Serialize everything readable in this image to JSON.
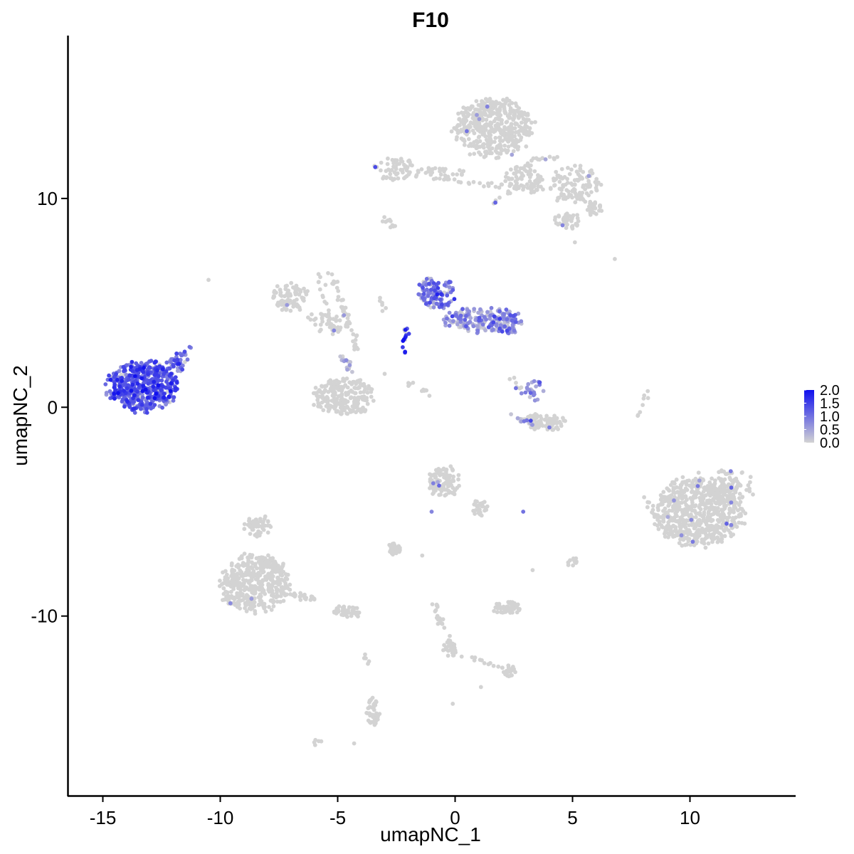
{
  "chart_data": {
    "type": "scatter",
    "title": "F10",
    "xlabel": "umapNC_1",
    "ylabel": "umapNC_2",
    "xlim": [
      -16.5,
      14.5
    ],
    "ylim": [
      -18.6,
      17.8
    ],
    "x_ticks": [
      -15,
      -10,
      -5,
      0,
      5,
      10
    ],
    "x_tick_labels": [
      "-15",
      "-10",
      "-5",
      "0",
      "5",
      "10"
    ],
    "y_ticks": [
      10,
      0,
      -10
    ],
    "y_tick_labels": [
      "10",
      "0",
      "-10"
    ],
    "grid": false,
    "color_scale": {
      "low_color": "#d3d3d3",
      "high_color": "#1010ee",
      "min": 0.0,
      "max": 2.0,
      "labels": [
        "2.0",
        "1.5",
        "1.0",
        "0.5",
        "0.0"
      ],
      "legend_position": "right"
    },
    "clusters": [
      {
        "cx": -13.3,
        "cy": 1.0,
        "rx": 1.5,
        "ry": 1.2,
        "n": 520,
        "expr": 1.2
      },
      {
        "cx": -11.8,
        "cy": 2.2,
        "rx": 0.5,
        "ry": 0.5,
        "n": 30,
        "expr": 1.0
      },
      {
        "cx": 1.6,
        "cy": 13.4,
        "rx": 1.7,
        "ry": 1.4,
        "n": 420,
        "expr": 0.0
      },
      {
        "cx": 2.9,
        "cy": 10.9,
        "rx": 0.8,
        "ry": 0.8,
        "n": 70,
        "expr": 0.0
      },
      {
        "cx": 5.1,
        "cy": 10.7,
        "rx": 1.1,
        "ry": 1.0,
        "n": 110,
        "expr": 0.0
      },
      {
        "cx": 5.9,
        "cy": 9.5,
        "rx": 0.4,
        "ry": 0.3,
        "n": 25,
        "expr": 0.0
      },
      {
        "cx": 4.8,
        "cy": 8.9,
        "rx": 0.6,
        "ry": 0.4,
        "n": 40,
        "expr": 0.0
      },
      {
        "cx": -2.6,
        "cy": 11.4,
        "rx": 0.8,
        "ry": 0.6,
        "n": 60,
        "expr": 0.0
      },
      {
        "cx": -0.6,
        "cy": 11.2,
        "rx": 1.2,
        "ry": 0.3,
        "n": 35,
        "expr": 0.0
      },
      {
        "cx": -7.0,
        "cy": 5.3,
        "rx": 0.8,
        "ry": 0.7,
        "n": 80,
        "expr": 0.0
      },
      {
        "cx": -5.3,
        "cy": 4.1,
        "rx": 1.0,
        "ry": 0.5,
        "n": 50,
        "expr": 0.0
      },
      {
        "cx": -4.8,
        "cy": 0.5,
        "rx": 1.3,
        "ry": 0.9,
        "n": 220,
        "expr": 0.0
      },
      {
        "cx": -0.8,
        "cy": 5.5,
        "rx": 0.8,
        "ry": 0.8,
        "n": 110,
        "expr": 0.9
      },
      {
        "cx": 1.1,
        "cy": 4.2,
        "rx": 1.6,
        "ry": 0.6,
        "n": 170,
        "expr": 0.5
      },
      {
        "cx": 2.2,
        "cy": 4.1,
        "rx": 0.6,
        "ry": 0.6,
        "n": 60,
        "expr": 0.7
      },
      {
        "cx": 3.8,
        "cy": -0.7,
        "rx": 1.0,
        "ry": 0.4,
        "n": 80,
        "expr": 0.0
      },
      {
        "cx": 3.4,
        "cy": 0.8,
        "rx": 0.4,
        "ry": 0.5,
        "n": 25,
        "expr": 0.6
      },
      {
        "cx": 10.4,
        "cy": -5.0,
        "rx": 1.9,
        "ry": 1.7,
        "n": 650,
        "expr": 0.0
      },
      {
        "cx": 11.8,
        "cy": -3.8,
        "rx": 0.9,
        "ry": 0.9,
        "n": 80,
        "expr": 0.0
      },
      {
        "cx": -0.5,
        "cy": -3.6,
        "rx": 0.7,
        "ry": 0.8,
        "n": 110,
        "expr": 0.0
      },
      {
        "cx": 1.0,
        "cy": -4.8,
        "rx": 0.4,
        "ry": 0.4,
        "n": 20,
        "expr": 0.0
      },
      {
        "cx": -8.5,
        "cy": -8.4,
        "rx": 1.5,
        "ry": 1.4,
        "n": 420,
        "expr": 0.0
      },
      {
        "cx": -8.4,
        "cy": -5.7,
        "rx": 0.6,
        "ry": 0.5,
        "n": 60,
        "expr": 0.0
      },
      {
        "cx": -4.6,
        "cy": -9.8,
        "rx": 0.6,
        "ry": 0.3,
        "n": 50,
        "expr": 0.0
      },
      {
        "cx": 2.2,
        "cy": -9.6,
        "rx": 0.6,
        "ry": 0.3,
        "n": 60,
        "expr": 0.0
      },
      {
        "cx": -2.6,
        "cy": -6.8,
        "rx": 0.3,
        "ry": 0.3,
        "n": 25,
        "expr": 0.0
      },
      {
        "cx": 5.0,
        "cy": -7.4,
        "rx": 0.2,
        "ry": 0.3,
        "n": 12,
        "expr": 0.0
      },
      {
        "cx": 2.4,
        "cy": -12.7,
        "rx": 0.3,
        "ry": 0.2,
        "n": 15,
        "expr": 0.0
      },
      {
        "cx": -3.5,
        "cy": -14.6,
        "rx": 0.3,
        "ry": 0.7,
        "n": 40,
        "expr": 0.0
      },
      {
        "cx": -0.2,
        "cy": -11.5,
        "rx": 0.3,
        "ry": 0.4,
        "n": 25,
        "expr": 0.0
      }
    ],
    "strands": [
      {
        "x1": -12.4,
        "y1": 1.6,
        "x2": -11.3,
        "y2": 2.8,
        "n": 18,
        "expr": 1.1
      },
      {
        "x1": -5.9,
        "y1": 6.6,
        "x2": -5.1,
        "y2": 3.2,
        "n": 22,
        "expr": 0.0
      },
      {
        "x1": -5.4,
        "y1": 6.7,
        "x2": -4.5,
        "y2": 4.0,
        "n": 22,
        "expr": 0.0
      },
      {
        "x1": -4.4,
        "y1": 4.0,
        "x2": -4.2,
        "y2": 2.7,
        "n": 12,
        "expr": 0.0
      },
      {
        "x1": -4.9,
        "y1": 2.6,
        "x2": -4.3,
        "y2": 1.5,
        "n": 14,
        "expr": 0.3
      },
      {
        "x1": -3.2,
        "y1": 5.2,
        "x2": -3.0,
        "y2": 4.5,
        "n": 6,
        "expr": 0.0
      },
      {
        "x1": -2.1,
        "y1": 3.8,
        "x2": -2.2,
        "y2": 2.5,
        "n": 14,
        "expr": 1.8
      },
      {
        "x1": -1.9,
        "y1": 1.2,
        "x2": -1.0,
        "y2": 0.6,
        "n": 10,
        "expr": 0.0
      },
      {
        "x1": -0.9,
        "y1": 11.0,
        "x2": 4.2,
        "y2": 10.3,
        "n": 25,
        "expr": 0.0
      },
      {
        "x1": 1.0,
        "y1": 14.9,
        "x2": 2.5,
        "y2": 12.4,
        "n": 20,
        "expr": 0.0
      },
      {
        "x1": 3.1,
        "y1": 11.8,
        "x2": 4.3,
        "y2": 12.0,
        "n": 12,
        "expr": 0.0
      },
      {
        "x1": 1.6,
        "y1": 9.8,
        "x2": 3.2,
        "y2": 10.8,
        "n": 14,
        "expr": 0.0
      },
      {
        "x1": -3.1,
        "y1": 9.0,
        "x2": -2.6,
        "y2": 8.9,
        "n": 6,
        "expr": 0.0
      },
      {
        "x1": 2.2,
        "y1": -0.2,
        "x2": 3.4,
        "y2": -0.9,
        "n": 12,
        "expr": 0.3
      },
      {
        "x1": 2.4,
        "y1": 1.5,
        "x2": 3.0,
        "y2": 0.5,
        "n": 8,
        "expr": 0.0
      },
      {
        "x1": 7.8,
        "y1": -0.4,
        "x2": 8.2,
        "y2": 0.9,
        "n": 8,
        "expr": 0.0
      },
      {
        "x1": 9.0,
        "y1": -6.0,
        "x2": 8.1,
        "y2": -4.3,
        "n": 14,
        "expr": 0.0
      },
      {
        "x1": 1.3,
        "y1": -5.5,
        "x2": 0.8,
        "y2": -4.6,
        "n": 8,
        "expr": 0.0
      },
      {
        "x1": -7.5,
        "y1": -8.8,
        "x2": -5.8,
        "y2": -9.2,
        "n": 28,
        "expr": 0.0
      },
      {
        "x1": -9.9,
        "y1": -9.2,
        "x2": -9.1,
        "y2": -9.6,
        "n": 12,
        "expr": 0.0
      },
      {
        "x1": -1.0,
        "y1": -8.9,
        "x2": 0.0,
        "y2": -12.0,
        "n": 24,
        "expr": 0.0
      },
      {
        "x1": 0.2,
        "y1": -11.9,
        "x2": 2.5,
        "y2": -12.6,
        "n": 18,
        "expr": 0.0
      },
      {
        "x1": -3.8,
        "y1": -11.8,
        "x2": -3.7,
        "y2": -12.4,
        "n": 5,
        "expr": 0.0
      },
      {
        "x1": -3.6,
        "y1": -15.3,
        "x2": -3.2,
        "y2": -14.6,
        "n": 10,
        "expr": 0.0
      },
      {
        "x1": -6.0,
        "y1": -16.2,
        "x2": -5.7,
        "y2": -15.9,
        "n": 5,
        "expr": 0.0
      },
      {
        "x1": -2.8,
        "y1": 8.5,
        "x2": -2.5,
        "y2": 8.7,
        "n": 4,
        "expr": 0.0
      }
    ],
    "singles": [
      {
        "x": -10.5,
        "y": 6.1,
        "expr": 0.0
      },
      {
        "x": 6.8,
        "y": 7.1,
        "expr": 0.0
      },
      {
        "x": 5.1,
        "y": 7.9,
        "expr": 0.0
      },
      {
        "x": -3.4,
        "y": 11.5,
        "expr": 1.4
      },
      {
        "x": -1.0,
        "y": -5.0,
        "expr": 0.8
      },
      {
        "x": 2.9,
        "y": -5.0,
        "expr": 1.0
      },
      {
        "x": -3.0,
        "y": 1.6,
        "expr": 0.0
      },
      {
        "x": -4.3,
        "y": -16.1,
        "expr": 0.0
      },
      {
        "x": -1.4,
        "y": -7.1,
        "expr": 0.0
      },
      {
        "x": 3.3,
        "y": -7.8,
        "expr": 0.0
      },
      {
        "x": 1.1,
        "y": -13.4,
        "expr": 0.0
      },
      {
        "x": -0.1,
        "y": -14.2,
        "expr": 0.0
      }
    ]
  }
}
